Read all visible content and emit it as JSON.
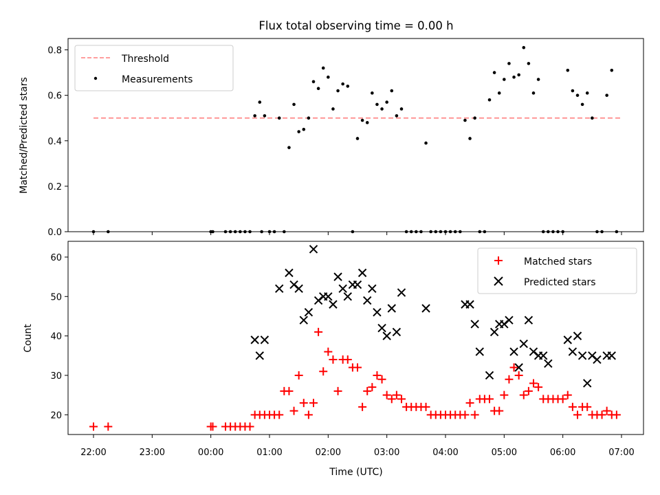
{
  "title": "Flux total observing time = 0.00 h",
  "colors": {
    "threshold": "#ff7f7f",
    "measurements": "#000000",
    "matched": "#ff0000",
    "predicted": "#000000"
  },
  "chart_data": [
    {
      "type": "scatter",
      "ylabel": "Matched/Predicted stars",
      "xlabel": "",
      "ylim": [
        0,
        0.85
      ],
      "yticks": [
        "0.0",
        "0.2",
        "0.4",
        "0.6",
        "0.8"
      ],
      "x_tick_labels_shown": false,
      "legend": {
        "placement": "top-left",
        "entries": [
          "Threshold",
          "Measurements"
        ]
      },
      "threshold": {
        "name": "Threshold",
        "value": 0.5,
        "x_start": "22:00",
        "x_end": "07:00",
        "style": "dashed"
      },
      "series": [
        {
          "name": "Measurements",
          "x": [
            "22:00",
            "22:15",
            "00:00",
            "00:02",
            "00:15",
            "00:20",
            "00:25",
            "00:30",
            "00:35",
            "00:40",
            "00:45",
            "00:50",
            "00:52",
            "00:55",
            "01:00",
            "01:05",
            "01:10",
            "01:15",
            "01:20",
            "01:25",
            "01:30",
            "01:35",
            "01:40",
            "01:45",
            "01:50",
            "01:55",
            "02:00",
            "02:05",
            "02:10",
            "02:15",
            "02:20",
            "02:25",
            "02:30",
            "02:35",
            "02:40",
            "02:45",
            "02:50",
            "02:55",
            "03:00",
            "03:05",
            "03:10",
            "03:15",
            "03:20",
            "03:25",
            "03:30",
            "03:35",
            "03:40",
            "03:45",
            "03:50",
            "03:55",
            "04:00",
            "04:05",
            "04:10",
            "04:15",
            "04:20",
            "04:25",
            "04:30",
            "04:35",
            "04:40",
            "04:45",
            "04:50",
            "04:55",
            "05:00",
            "05:05",
            "05:10",
            "05:15",
            "05:20",
            "05:25",
            "05:30",
            "05:35",
            "05:40",
            "05:45",
            "05:50",
            "05:55",
            "06:00",
            "06:05",
            "06:10",
            "06:15",
            "06:20",
            "06:25",
            "06:30",
            "06:35",
            "06:40",
            "06:45",
            "06:50",
            "06:55"
          ],
          "y": [
            0.0,
            0.0,
            0.0,
            0.0,
            0.0,
            0.0,
            0.0,
            0.0,
            0.0,
            0.0,
            0.51,
            0.57,
            0.0,
            0.51,
            0.0,
            0.0,
            0.5,
            0.0,
            0.37,
            0.56,
            0.44,
            0.45,
            0.5,
            0.66,
            0.63,
            0.72,
            0.68,
            0.54,
            0.62,
            0.65,
            0.64,
            0.0,
            0.41,
            0.49,
            0.48,
            0.61,
            0.56,
            0.54,
            0.57,
            0.62,
            0.51,
            0.54,
            0.0,
            0.0,
            0.0,
            0.0,
            0.39,
            0.0,
            0.0,
            0.0,
            0.0,
            0.0,
            0.0,
            0.0,
            0.49,
            0.41,
            0.5,
            0.0,
            0.0,
            0.58,
            0.7,
            0.61,
            0.67,
            0.74,
            0.68,
            0.69,
            0.81,
            0.74,
            0.61,
            0.67,
            0.0,
            0.0,
            0.0,
            0.0,
            0.0,
            0.71,
            0.62,
            0.6,
            0.56,
            0.61,
            0.5,
            0.0,
            0.0,
            0.6,
            0.71,
            0.0
          ]
        }
      ]
    },
    {
      "type": "scatter",
      "ylabel": "Count",
      "xlabel": "Time (UTC)",
      "ylim": [
        15,
        64
      ],
      "yticks": [
        "20",
        "30",
        "40",
        "50",
        "60"
      ],
      "xticks": [
        "22:00",
        "23:00",
        "00:00",
        "01:00",
        "02:00",
        "03:00",
        "04:00",
        "05:00",
        "06:00",
        "07:00"
      ],
      "legend": {
        "placement": "top-right",
        "entries": [
          "Matched stars",
          "Predicted stars"
        ]
      },
      "series": [
        {
          "name": "Matched stars",
          "marker": "plus",
          "x": [
            "22:00",
            "22:15",
            "00:00",
            "00:02",
            "00:15",
            "00:20",
            "00:25",
            "00:30",
            "00:35",
            "00:40",
            "00:45",
            "00:50",
            "00:55",
            "01:00",
            "01:05",
            "01:10",
            "01:15",
            "01:20",
            "01:25",
            "01:30",
            "01:35",
            "01:40",
            "01:45",
            "01:50",
            "01:55",
            "02:00",
            "02:05",
            "02:10",
            "02:15",
            "02:20",
            "02:25",
            "02:30",
            "02:35",
            "02:40",
            "02:45",
            "02:50",
            "02:55",
            "03:00",
            "03:05",
            "03:10",
            "03:15",
            "03:20",
            "03:25",
            "03:30",
            "03:35",
            "03:40",
            "03:45",
            "03:50",
            "03:55",
            "04:00",
            "04:05",
            "04:10",
            "04:15",
            "04:20",
            "04:25",
            "04:30",
            "04:35",
            "04:40",
            "04:45",
            "04:50",
            "04:55",
            "05:00",
            "05:05",
            "05:10",
            "05:15",
            "05:20",
            "05:25",
            "05:30",
            "05:35",
            "05:40",
            "05:45",
            "05:50",
            "05:55",
            "06:00",
            "06:05",
            "06:10",
            "06:15",
            "06:20",
            "06:25",
            "06:30",
            "06:35",
            "06:40",
            "06:45",
            "06:50",
            "06:55"
          ],
          "y": [
            17,
            17,
            17,
            17,
            17,
            17,
            17,
            17,
            17,
            17,
            20,
            20,
            20,
            20,
            20,
            20,
            26,
            26,
            21,
            30,
            23,
            20,
            23,
            41,
            31,
            36,
            34,
            26,
            34,
            34,
            32,
            32,
            22,
            26,
            27,
            30,
            29,
            25,
            24,
            25,
            24,
            22,
            22,
            22,
            22,
            22,
            20,
            20,
            20,
            20,
            20,
            20,
            20,
            20,
            23,
            20,
            24,
            24,
            24,
            21,
            21,
            25,
            29,
            32,
            30,
            25,
            26,
            28,
            27,
            24,
            24,
            24,
            24,
            24,
            25,
            22,
            20,
            22,
            22,
            20,
            20,
            20,
            21,
            20,
            20
          ]
        },
        {
          "name": "Predicted stars",
          "marker": "x",
          "x": [
            "00:45",
            "00:50",
            "00:55",
            "01:10",
            "01:20",
            "01:25",
            "01:30",
            "01:35",
            "01:40",
            "01:45",
            "01:50",
            "01:55",
            "02:00",
            "02:05",
            "02:10",
            "02:15",
            "02:20",
            "02:25",
            "02:30",
            "02:35",
            "02:40",
            "02:45",
            "02:50",
            "02:55",
            "03:00",
            "03:05",
            "03:10",
            "03:15",
            "03:40",
            "04:20",
            "04:25",
            "04:30",
            "04:35",
            "04:45",
            "04:50",
            "04:55",
            "05:00",
            "05:05",
            "05:10",
            "05:15",
            "05:20",
            "05:25",
            "05:30",
            "05:35",
            "05:40",
            "05:45",
            "06:05",
            "06:10",
            "06:15",
            "06:20",
            "06:25",
            "06:30",
            "06:35",
            "06:45",
            "06:50"
          ],
          "y": [
            39,
            35,
            39,
            52,
            56,
            53,
            52,
            44,
            46,
            62,
            49,
            50,
            50,
            48,
            55,
            52,
            50,
            53,
            53,
            56,
            49,
            52,
            46,
            42,
            40,
            47,
            41,
            51,
            47,
            48,
            48,
            43,
            36,
            30,
            41,
            43,
            43,
            44,
            36,
            32,
            38,
            44,
            36,
            35,
            35,
            33,
            39,
            36,
            40,
            35,
            28,
            35,
            34,
            35,
            35
          ]
        }
      ]
    }
  ]
}
